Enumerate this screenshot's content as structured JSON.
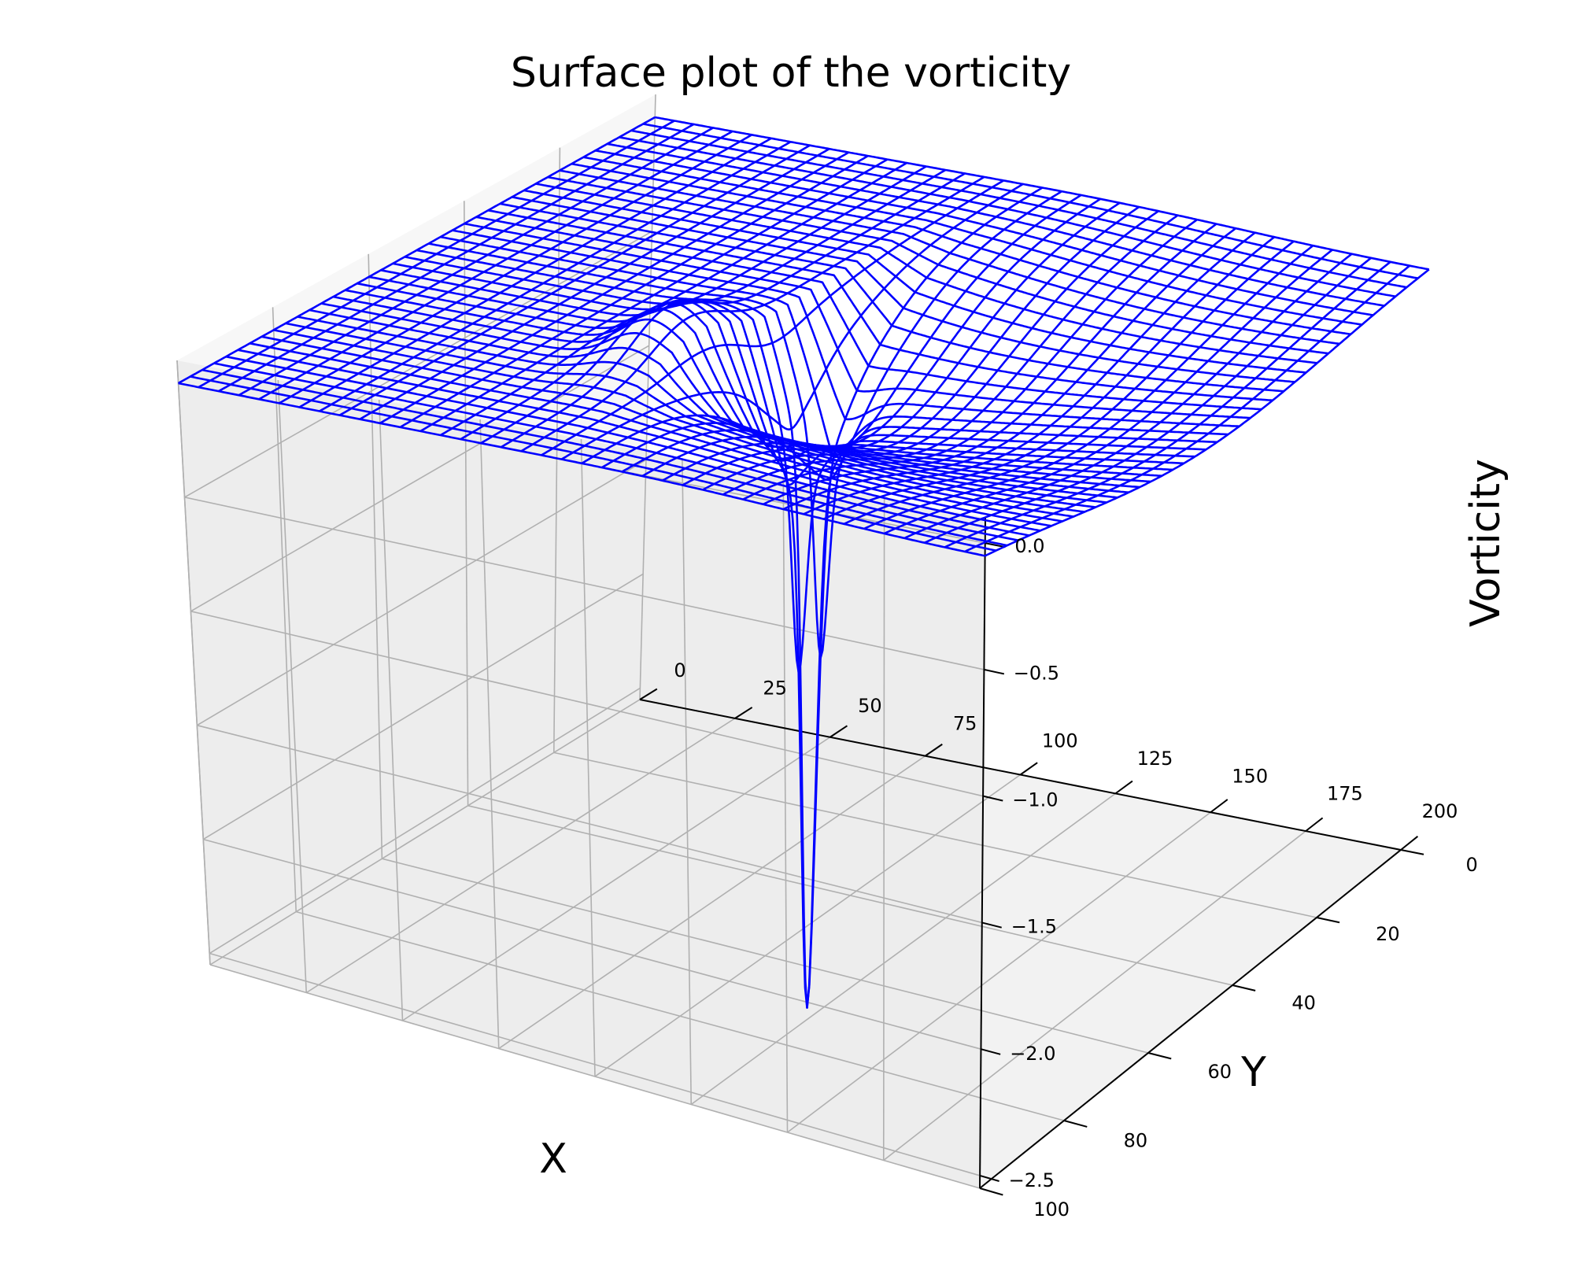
{
  "chart_data": {
    "type": "surface",
    "title": "Surface plot of the vorticity",
    "xlabel": "X",
    "ylabel": "Y",
    "zlabel": "Vorticity",
    "xlim": [
      0,
      200
    ],
    "ylim": [
      0,
      100
    ],
    "zlim": [
      -2.55,
      0.1
    ],
    "x_ticks": [
      "0",
      "25",
      "50",
      "75",
      "100",
      "125",
      "150",
      "175",
      "200"
    ],
    "y_ticks": [
      "0",
      "20",
      "40",
      "60",
      "80",
      "100"
    ],
    "z_ticks": [
      "0.0",
      "−0.5",
      "−1.0",
      "−1.5",
      "−2.0",
      "−2.5"
    ],
    "grid": true,
    "wireframe_color": "#0000ff",
    "surface": {
      "baseline": 0.0,
      "minimum_value": -2.45,
      "minimum_location": {
        "x": 100,
        "y": 50
      },
      "shallow_trough_depth": -0.45,
      "shallow_trough_x_range": [
        100,
        200
      ]
    }
  }
}
